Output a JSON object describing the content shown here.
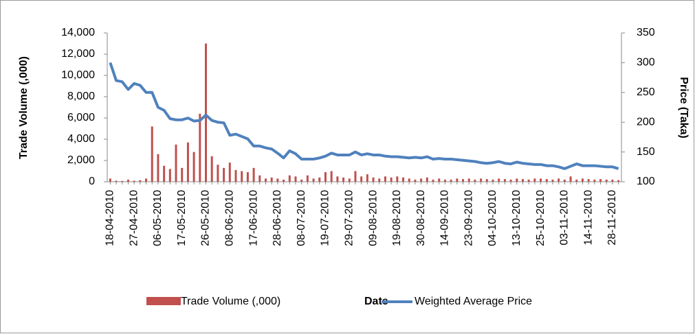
{
  "chart_data": {
    "type": "bar-line",
    "x_label": "Date",
    "y_label": "Trade Volume (,000)",
    "y2_label": "Price (Taka)",
    "categories": [
      "18-04-2010",
      null,
      null,
      null,
      "27-04-2010",
      null,
      null,
      null,
      "06-05-2010",
      null,
      null,
      null,
      "17-05-2010",
      null,
      null,
      null,
      "26-05-2010",
      null,
      null,
      null,
      "08-06-2010",
      null,
      null,
      null,
      "17-06-2010",
      null,
      null,
      null,
      "28-06-2010",
      null,
      null,
      null,
      "08-07-2010",
      null,
      null,
      null,
      "19-07-2010",
      null,
      null,
      null,
      "29-07-2010",
      null,
      null,
      null,
      "09-08-2010",
      null,
      null,
      null,
      "19-08-2010",
      null,
      null,
      null,
      "30-08-2010",
      null,
      null,
      null,
      "14-09-2010",
      null,
      null,
      null,
      "23-09-2010",
      null,
      null,
      null,
      "04-10-2010",
      null,
      null,
      null,
      "13-10-2010",
      null,
      null,
      null,
      "25-10-2010",
      null,
      null,
      null,
      "03-11-2010",
      null,
      null,
      null,
      "14-11-2010",
      null,
      null,
      null,
      "28-11-2010",
      null
    ],
    "series": [
      {
        "name": "Trade Volume (,000)",
        "color": "#c0504d",
        "type": "bar",
        "values": [
          300,
          100,
          80,
          200,
          100,
          150,
          300,
          5200,
          2600,
          1500,
          1200,
          3500,
          1300,
          3700,
          2800,
          6400,
          13000,
          2400,
          1600,
          1300,
          1800,
          1100,
          1000,
          900,
          1300,
          600,
          300,
          400,
          300,
          200,
          600,
          500,
          200,
          600,
          300,
          400,
          900,
          1000,
          500,
          400,
          300,
          1000,
          500,
          700,
          400,
          300,
          500,
          400,
          500,
          400,
          300,
          200,
          300,
          400,
          200,
          300,
          200,
          200,
          300,
          250,
          300,
          200,
          300,
          250,
          200,
          300,
          250,
          200,
          300,
          250,
          200,
          300,
          300,
          250,
          200,
          300,
          200,
          500,
          200,
          300,
          250,
          200,
          250,
          200,
          200,
          150
        ]
      },
      {
        "name": "Weighted Average Price",
        "color": "#4f81bd",
        "type": "line",
        "axis": "y2",
        "values": [
          300,
          270,
          268,
          255,
          265,
          262,
          250,
          250,
          225,
          220,
          206,
          204,
          204,
          207,
          202,
          203,
          212,
          203,
          200,
          199,
          178,
          180,
          176,
          172,
          160,
          160,
          157,
          155,
          148,
          140,
          152,
          147,
          138,
          138,
          138,
          140,
          143,
          148,
          145,
          145,
          145,
          150,
          145,
          147,
          145,
          145,
          143,
          142,
          142,
          141,
          140,
          141,
          140,
          142,
          138,
          139,
          138,
          138,
          137,
          136,
          135,
          134,
          132,
          131,
          132,
          134,
          131,
          130,
          133,
          131,
          130,
          129,
          129,
          127,
          127,
          125,
          122,
          126,
          130,
          127,
          127,
          127,
          126,
          125,
          125,
          122
        ]
      }
    ],
    "ylim": [
      0,
      14000
    ],
    "yticks": [
      0,
      {
        "value": 2000,
        "label": "2,000"
      },
      {
        "value": 4000,
        "label": "4,000"
      },
      {
        "value": 6000,
        "label": "6,000"
      },
      {
        "value": 8000,
        "label": "8,000"
      },
      {
        "value": 10000,
        "label": "10,000"
      },
      {
        "value": 12000,
        "label": "12,000"
      },
      {
        "value": 14000,
        "label": "14,000"
      }
    ],
    "y2lim": [
      100,
      350
    ],
    "y2ticks": [
      100,
      150,
      200,
      250,
      300,
      350
    ]
  }
}
